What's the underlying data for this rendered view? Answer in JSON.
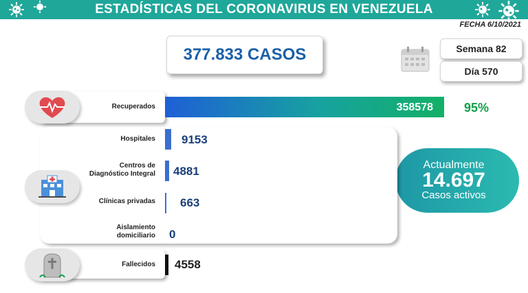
{
  "header": {
    "title": "ESTADÍSTICAS DEL CORONAVIRUS EN VENEZUELA"
  },
  "date": "FECHA 6/10/2021",
  "total_cases": "377.833 CASOS",
  "week": "Semana 82",
  "day": "Día 570",
  "rows": {
    "recuperados": {
      "label": "Recuperados",
      "value": "358578",
      "percent": "95%"
    },
    "hospitales": {
      "label": "Hospitales",
      "value": "9153"
    },
    "cdi": {
      "label_line1": "Centros de",
      "label_line2": "Diagnóstico Integral",
      "value": "4881"
    },
    "clinicas": {
      "label": "Clínicas privadas",
      "value": "663"
    },
    "aislamiento": {
      "label_line1": "Aislamiento",
      "label_line2": "domiciliario",
      "value": "0"
    },
    "fallecidos": {
      "label": "Fallecidos",
      "value": "4558"
    }
  },
  "active": {
    "title": "Actualmente",
    "number": "14.697",
    "subtitle": "Casos activos"
  },
  "colors": {
    "teal": "#1fa79a",
    "blue": "#1a5fa8",
    "green": "#11a04a",
    "bar_blue": "#3a6fd0",
    "black": "#111111"
  },
  "icons": [
    "virus-icon",
    "calendar-icon",
    "heart-icon",
    "hospital-icon",
    "tombstone-icon"
  ]
}
